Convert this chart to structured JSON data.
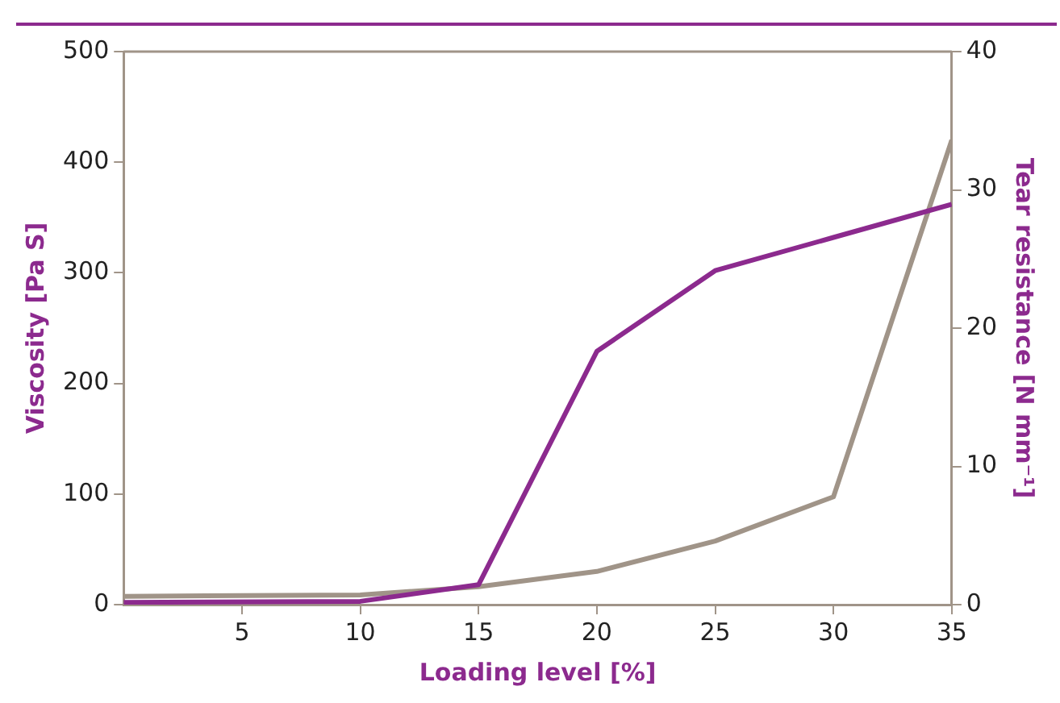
{
  "chart_data": {
    "type": "line",
    "xlabel": "Loading level [%]",
    "ylabel": "Viscosity [Pa S]",
    "y2label": "Tear resistance [N mm⁻¹]",
    "x": [
      0,
      10,
      15,
      20,
      25,
      30,
      35
    ],
    "series": [
      {
        "color": "#8c2a8e",
        "values": [
          2,
          3,
          18,
          229,
          302,
          332,
          362
        ]
      },
      {
        "color": "#a09488",
        "axis": "y2",
        "values": [
          0.6,
          0.7,
          1.3,
          2.4,
          4.6,
          7.8,
          33.6
        ]
      }
    ],
    "xlim": [
      0,
      35
    ],
    "xticks": [
      5,
      10,
      15,
      20,
      25,
      30,
      35
    ],
    "ylim": [
      0,
      500
    ],
    "yticks": [
      0,
      100,
      200,
      300,
      400,
      500
    ],
    "y2lim": [
      0,
      40
    ],
    "y2ticks": [
      0,
      10,
      20,
      30,
      40
    ],
    "grid": false,
    "legend": false,
    "marker": "none",
    "line_style": "solid"
  }
}
